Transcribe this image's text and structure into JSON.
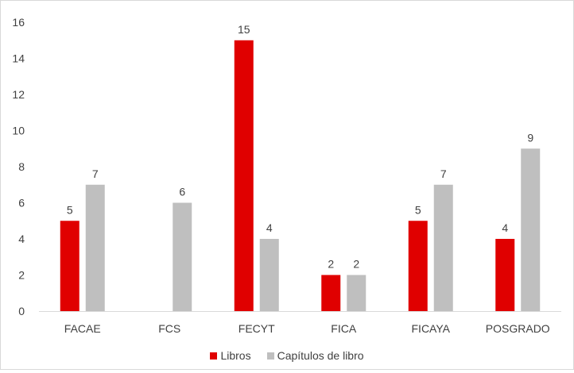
{
  "chart_data": {
    "type": "bar",
    "categories": [
      "FACAE",
      "FCS",
      "FECYT",
      "FICA",
      "FICAYA",
      "POSGRADO"
    ],
    "series": [
      {
        "name": "Libros",
        "color": "#e00000",
        "values": [
          5,
          null,
          15,
          2,
          5,
          4
        ]
      },
      {
        "name": "Capítulos de libro",
        "color": "#bfbfbf",
        "values": [
          7,
          6,
          4,
          2,
          7,
          9
        ]
      }
    ],
    "ylim": [
      0,
      16
    ],
    "yticks": [
      0,
      2,
      4,
      6,
      8,
      10,
      12,
      14,
      16
    ],
    "grid": false,
    "legend_position": "bottom"
  }
}
